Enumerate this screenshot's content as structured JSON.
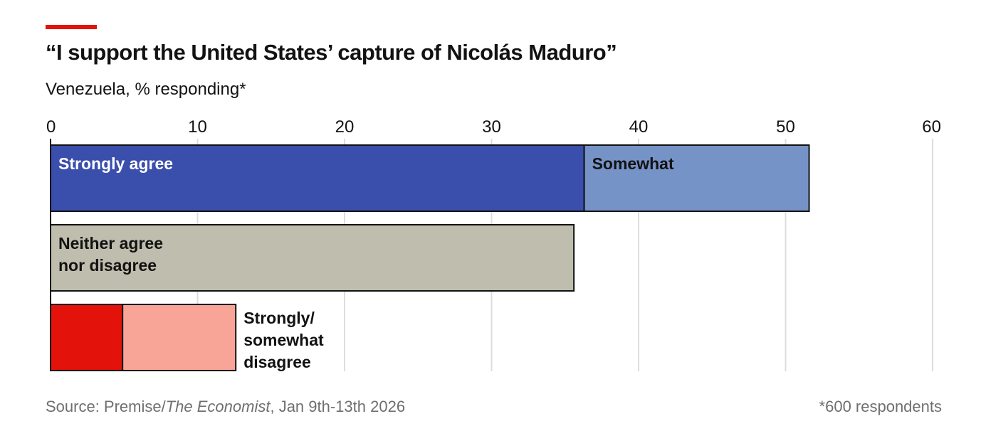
{
  "title": "“I support the United States’ capture of Nicolás Maduro”",
  "subtitle": "Venezuela, % responding*",
  "source": {
    "prefix": "Source: Premise/",
    "publication": "The Economist",
    "suffix": ", Jan 9th-13th 2026"
  },
  "footnote": "*600 respondents",
  "colors": {
    "strongly_agree": "#3a4eac",
    "somewhat_agree": "#7693c7",
    "neither": "#bfbdad",
    "strongly_disagree": "#e3120b",
    "somewhat_disagree": "#f8a598",
    "gridline": "#dddddd",
    "accent": "#e3120b"
  },
  "chart_data": {
    "type": "bar",
    "orientation": "horizontal",
    "stacked": true,
    "xlim": [
      0,
      60
    ],
    "ticks": [
      0,
      10,
      20,
      30,
      40,
      50,
      60
    ],
    "grid": true,
    "bars": [
      {
        "segments": [
          {
            "label": "Strongly agree",
            "value": 36.3,
            "color_key": "strongly_agree"
          },
          {
            "label": "Somewhat",
            "value": 15.3,
            "color_key": "somewhat_agree"
          }
        ]
      },
      {
        "segments": [
          {
            "label": "Neither agree\nnor disagree",
            "value": 35.6,
            "color_key": "neither"
          }
        ]
      },
      {
        "label": "Strongly/\nsomewhat\ndisagree",
        "segments": [
          {
            "label": "",
            "value": 4.9,
            "color_key": "strongly_disagree"
          },
          {
            "label": "",
            "value": 7.7,
            "color_key": "somewhat_disagree"
          }
        ]
      }
    ]
  }
}
